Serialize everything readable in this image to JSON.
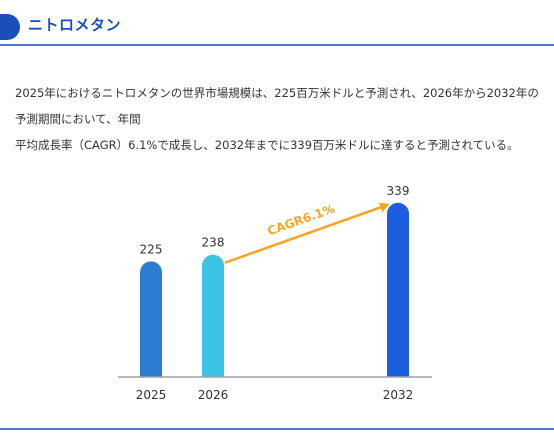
{
  "header": {
    "title": "ニトロメタン"
  },
  "summary": {
    "line1": "2025年におけるニトロメタンの世界市場規模は、225百万米ドルと予測され、2026年から2032年の予測期間において、年間",
    "line2": "平均成長率（CAGR）6.1%で成長し、2032年までに339百万米ドルに達すると予測されている。"
  },
  "colors": {
    "accent": "#1a4fb8",
    "arrow": "#f5a623"
  },
  "chart_data": {
    "type": "bar",
    "categories": [
      "2025",
      "2026",
      "2032"
    ],
    "values": [
      225,
      238,
      339
    ],
    "bar_colors": [
      "#2e7bd4",
      "#3bc3e6",
      "#1b5fe0"
    ],
    "annotation": {
      "label": "CAGR6.1%",
      "from": "2026",
      "to": "2032"
    },
    "ylim": [
      0,
      360
    ],
    "xlabel": "",
    "ylabel": ""
  }
}
